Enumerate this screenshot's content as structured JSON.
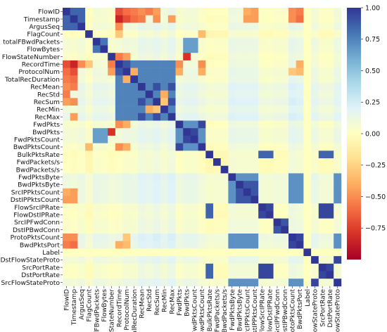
{
  "chart_data": {
    "type": "heatmap",
    "title": "",
    "xlabel": "",
    "ylabel": "",
    "labels": [
      "FlowID",
      "Timestamp",
      "ArgusSeq",
      "FlagCount",
      "totalFBwdPackets",
      "FlowBytes",
      "FlowStateNumber",
      "RecordTime",
      "ProtocolNum",
      "TotalRecDuration",
      "RecMean",
      "RecStd",
      "RecSum",
      "RecMin",
      "RecMax",
      "FwdPkts",
      "BwdPkts",
      "FwdPktsCount",
      "BwdPktsCount",
      "BulkPktsRate",
      "FwdPackets/s",
      "BwdPackets/s",
      "FwdPktsByte",
      "BwdPktsByte",
      "SrcIPPktsCount",
      "DstIPPktsCount",
      "FlowSrcIPRate",
      "FlowDstIPRate",
      "SrcIPFwdConn",
      "DstIPBwdConn",
      "ProtoPktsCount",
      "BwdPktsPort",
      "Label",
      "DstFlowStateProto",
      "SrcPortRate",
      "DstPortRate",
      "SrcFlowStateProto"
    ],
    "colorbar": {
      "range": [
        -1.0,
        1.0
      ],
      "ticks": [
        "1.00",
        "0.75",
        "0.50",
        "0.25",
        "0.00",
        "−0.25",
        "−0.50",
        "−0.75"
      ],
      "tick_values": [
        1.0,
        0.75,
        0.5,
        0.25,
        0.0,
        -0.25,
        -0.5,
        -0.75
      ],
      "colormap": "RdYlBu",
      "colors": [
        "#a50026",
        "#d73027",
        "#f46d43",
        "#fdae61",
        "#fee090",
        "#ffffbf",
        "#e0f3f8",
        "#abd9e9",
        "#74add1",
        "#4575b4",
        "#313695"
      ]
    },
    "diagonal": 1.0,
    "groups": [
      {
        "members": [
          0,
          1,
          2
        ],
        "r": 0.85
      },
      {
        "members": [
          4,
          5
        ],
        "r": 0.8
      },
      {
        "members": [
          4,
          5,
          16,
          17
        ],
        "r": 0.65
      },
      {
        "members": [
          7,
          8,
          9,
          10,
          11,
          12,
          13,
          14
        ],
        "r": 0.75
      },
      {
        "members": [
          7,
          8
        ],
        "r": 0.9
      },
      {
        "members": [
          10,
          12,
          14
        ],
        "r": 0.92
      },
      {
        "members": [
          15,
          16,
          17,
          18
        ],
        "r": 0.7
      },
      {
        "members": [
          15,
          18
        ],
        "r": 0.95
      },
      {
        "members": [
          16,
          17
        ],
        "r": 0.95
      },
      {
        "members": [
          22,
          23,
          24,
          25,
          30,
          31,
          36
        ],
        "r": 0.7
      },
      {
        "members": [
          23,
          24,
          25
        ],
        "r": 0.9
      },
      {
        "members": [
          26,
          27,
          34,
          35
        ],
        "r": 0.95
      },
      {
        "members": [
          19,
          26,
          27,
          34,
          35
        ],
        "r": 0.85
      },
      {
        "members": [
          28,
          29
        ],
        "r": 0.9
      },
      {
        "members": [
          30,
          31
        ],
        "r": 0.95
      },
      {
        "members": [
          33,
          36
        ],
        "r": 0.95
      }
    ],
    "row_offsets": [
      0.05,
      0.02,
      0.08,
      -0.05,
      0.1,
      0.08,
      0.02,
      0.05,
      0.12,
      0.1,
      0.22,
      0.18,
      0.24,
      0.15,
      0.24,
      0.05,
      0.12,
      0.12,
      0.02,
      -0.06,
      -0.04,
      -0.04,
      0.18,
      0.16,
      0.16,
      0.16,
      0.0,
      -0.02,
      0.02,
      0.02,
      0.22,
      0.18,
      -0.1,
      0.12,
      0.0,
      0.0,
      0.14
    ],
    "negatives": [
      [
        0,
        7,
        -0.7
      ],
      [
        0,
        8,
        -0.6
      ],
      [
        0,
        9,
        -0.55
      ],
      [
        0,
        10,
        -0.5
      ],
      [
        0,
        11,
        -0.55
      ],
      [
        0,
        12,
        -0.45
      ],
      [
        1,
        7,
        -0.85
      ],
      [
        1,
        8,
        -0.7
      ],
      [
        1,
        9,
        -0.6
      ],
      [
        1,
        10,
        -0.55
      ],
      [
        1,
        12,
        -0.5
      ],
      [
        1,
        14,
        -0.45
      ],
      [
        2,
        7,
        -0.5
      ],
      [
        0,
        24,
        -0.4
      ],
      [
        0,
        25,
        -0.45
      ],
      [
        1,
        24,
        -0.45
      ],
      [
        1,
        25,
        -0.45
      ],
      [
        0,
        31,
        -0.55
      ],
      [
        1,
        31,
        -0.6
      ],
      [
        0,
        30,
        -0.5
      ],
      [
        1,
        30,
        -0.5
      ],
      [
        6,
        16,
        -0.8
      ],
      [
        6,
        7,
        -0.55
      ],
      [
        6,
        8,
        -0.45
      ],
      [
        8,
        9,
        -0.4
      ],
      [
        7,
        15,
        -0.5
      ],
      [
        7,
        18,
        -0.5
      ],
      [
        8,
        15,
        -0.4
      ],
      [
        8,
        18,
        -0.4
      ],
      [
        11,
        13,
        -0.4
      ],
      [
        12,
        13,
        -0.3
      ],
      [
        3,
        18,
        -0.35
      ],
      [
        3,
        7,
        -0.3
      ],
      [
        7,
        31,
        -0.4
      ],
      [
        8,
        31,
        -0.35
      ],
      [
        8,
        30,
        -0.3
      ]
    ],
    "blank_label_row": 32
  }
}
